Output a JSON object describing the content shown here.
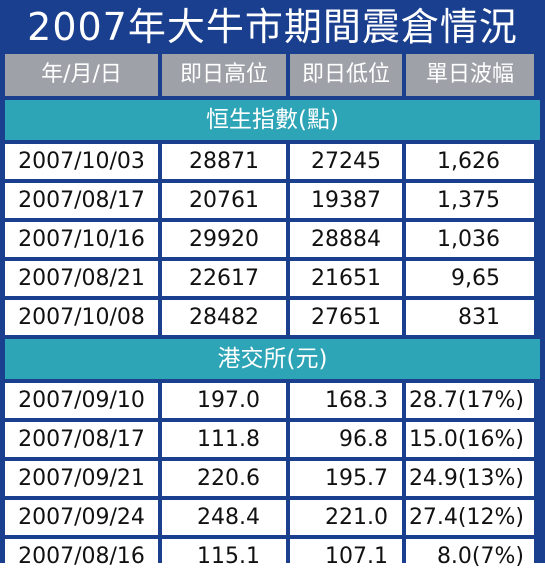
{
  "title": "2007年大牛市期間震倉情況",
  "columns": [
    "年/月/日",
    "即日高位",
    "即日低位",
    "單日波幅"
  ],
  "sections": [
    {
      "label": "恒生指數(點)",
      "rows": [
        [
          "2007/10/03",
          "28871",
          "27245",
          "1,626"
        ],
        [
          "2007/08/17",
          "20761",
          "19387",
          "1,375"
        ],
        [
          "2007/10/16",
          "29920",
          "28884",
          "1,036"
        ],
        [
          "2007/08/21",
          "22617",
          "21651",
          "9,65"
        ],
        [
          "2007/10/08",
          "28482",
          "27651",
          "831"
        ]
      ]
    },
    {
      "label": "港交所(元)",
      "rows": [
        [
          "2007/09/10",
          "197.0",
          "168.3",
          "28.7(17%)"
        ],
        [
          "2007/08/17",
          "111.8",
          "96.8",
          "15.0(16%)"
        ],
        [
          "2007/09/21",
          "220.6",
          "195.7",
          "24.9(13%)"
        ],
        [
          "2007/09/24",
          "248.4",
          "221.0",
          "27.4(12%)"
        ],
        [
          "2007/08/16",
          "115.1",
          "107.1",
          "8.0(7%)"
        ]
      ]
    }
  ],
  "colors": {
    "frame": "#1b3f8f",
    "header": "#9ea2a8",
    "section": "#2ea5b6",
    "cell": "#ffffff"
  }
}
